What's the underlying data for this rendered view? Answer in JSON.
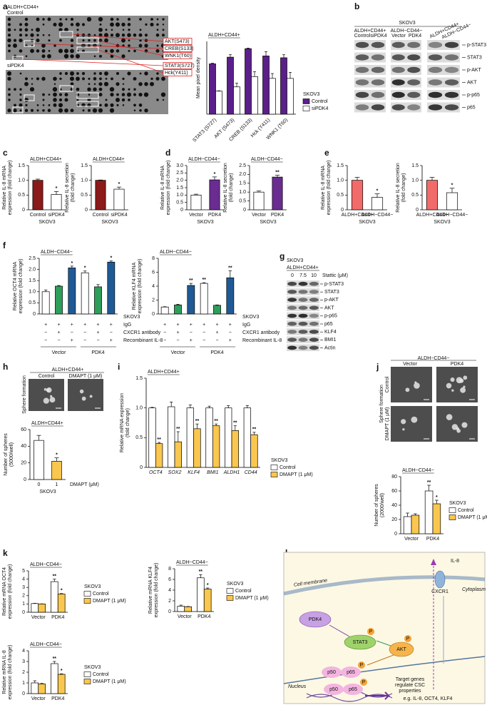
{
  "figure": {
    "panel_labels": [
      "a",
      "b",
      "c",
      "d",
      "e",
      "f",
      "g",
      "h",
      "i",
      "j",
      "k",
      "l"
    ],
    "a": {
      "header": "ALDH+CD44+",
      "arrays": [
        "Control",
        "siPDK4"
      ],
      "spots": [
        "AKT(S473)",
        "CREB(S133)",
        "WNK1(T60)",
        "STAT3(S727)",
        "Hck(Y411)"
      ]
    },
    "b": {
      "cell": "SKOV3",
      "groups": [
        "ALDH+CD44+",
        "ALDH−CD44−",
        "ALDH+CD44+",
        "ALDH−CD44−"
      ],
      "lanes": [
        "Control",
        "siPDK4",
        "Vector",
        "PDK4"
      ],
      "proteins": [
        "p-STAT3",
        "STAT3",
        "p-AKT",
        "AKT",
        "p-p65",
        "p65"
      ]
    },
    "f": {
      "cell": "SKOV3",
      "rows": [
        {
          "label": "IgG",
          "signs": [
            "+",
            "+",
            "+",
            "+",
            "+",
            "+"
          ]
        },
        {
          "label": "CXCR1 antibody",
          "signs": [
            "−",
            "+",
            "−",
            "−",
            "+",
            "−"
          ]
        },
        {
          "label": "Recombinant IL-8",
          "signs": [
            "−",
            "−",
            "+",
            "−",
            "−",
            "+"
          ]
        }
      ],
      "groups": [
        "Vector",
        "PDK4"
      ]
    },
    "g": {
      "cell": "SKOV3",
      "group": "ALDH+CD44+",
      "doses": [
        0,
        7.5,
        10
      ],
      "dose_label": "Stattic (μM)",
      "proteins": [
        "p-STAT3",
        "STAT3",
        "p-AKT",
        "AKT",
        "p-p65",
        "p65",
        "KLF4",
        "BMI1",
        "Actin"
      ]
    },
    "h": {
      "header": "ALDH+CD44+",
      "conditions": [
        "Control",
        "DMAPT (1 μM)"
      ],
      "row_label": "Sphere formation"
    },
    "j": {
      "header": "ALDH−CD44−",
      "columns": [
        "Vector",
        "PDK4"
      ],
      "rows": [
        "Control",
        "DMAPT (1 μM)"
      ],
      "row_label": "Sphere formation"
    },
    "l": {
      "il8": "IL-8",
      "cxcr1": "CXCR1",
      "membrane": "Cell membrane",
      "cytoplasm": "Cytoplasm",
      "nucleus": "Nucleus",
      "pdk4": "PDK4",
      "stat3": "STAT3",
      "akt": "AKT",
      "p50": "p50",
      "p65": "p65",
      "phospho": "P",
      "target": [
        "Target genes",
        "regulate CSC",
        "properties"
      ],
      "examples": "e.g. IL-8, OCT4, KLF4"
    }
  },
  "chart_data": [
    {
      "type": "bar",
      "title": "ALDH+CD44+",
      "y_label": [
        "Mean pixel density"
      ],
      "categories": [
        "STAT3 (S727)",
        "AKT (S473)",
        "CREB (S133)",
        "Hck (Y411)",
        "WNK1 (T60)"
      ],
      "series": [
        {
          "name": "Control",
          "color": "#5b1f8a",
          "values": [
            8.3,
            9.4,
            10.8,
            9.6,
            9.3
          ],
          "errors": [
            0.1,
            0.4,
            0.1,
            0.7,
            0.5
          ]
        },
        {
          "name": "siPDK4",
          "color": "#ffffff",
          "values": [
            3.8,
            4.5,
            6.2,
            5.9,
            5.9
          ],
          "errors": [
            0.05,
            0.6,
            0.8,
            0.8,
            1.0
          ]
        }
      ],
      "ylim": [
        0,
        12
      ],
      "legend": "right",
      "legend_title": "SKOV3"
    },
    {
      "type": "bar",
      "title": "ALDH+CD44+",
      "y_label": [
        "Relative IL-8 mRNA",
        "expression (fold change)"
      ],
      "categories": [
        "Control",
        "siPDK4"
      ],
      "series": [
        {
          "colors": [
            "#8b1a1a",
            "#ffffff"
          ],
          "values": [
            1.0,
            0.52
          ],
          "errors": [
            0.04,
            0.1
          ],
          "annotations": [
            null,
            "*"
          ]
        }
      ],
      "ylim": [
        0,
        1.5
      ],
      "yticks": [
        0,
        0.5,
        {
          "value": 1,
          "label": "1.0"
        },
        1.5
      ],
      "x_label": "SKOV3"
    },
    {
      "type": "bar",
      "title": "ALDH+CD44+",
      "y_label": [
        "Relative IL-8 secretion",
        "(fold change)"
      ],
      "categories": [
        "Control",
        "siPDK4"
      ],
      "series": [
        {
          "colors": [
            "#8b1a1a",
            "#ffffff"
          ],
          "values": [
            1.0,
            0.7
          ],
          "errors": [
            0.01,
            0.07
          ],
          "annotations": [
            null,
            "*"
          ]
        }
      ],
      "ylim": [
        0,
        1.5
      ],
      "yticks": [
        0,
        0.5,
        {
          "value": 1,
          "label": "1.0"
        },
        1.5
      ],
      "x_label": "SKOV3"
    },
    {
      "type": "bar",
      "title": "ALDH−CD44−",
      "y_label": [
        "Relative IL-8 mRNA",
        "expression (fold change)"
      ],
      "categories": [
        "Vector",
        "PDK4"
      ],
      "series": [
        {
          "colors": [
            "#ffffff",
            "#6a2c91"
          ],
          "values": [
            1.0,
            2.03
          ],
          "errors": [
            0.06,
            0.2
          ],
          "annotations": [
            null,
            "*"
          ]
        }
      ],
      "ylim": [
        0,
        3
      ],
      "yticks": [
        0,
        0.5,
        {
          "value": 1,
          "label": "1.0"
        },
        1.5,
        {
          "value": 2,
          "label": "2.0"
        },
        2.5,
        {
          "value": 3,
          "label": "3.0"
        }
      ],
      "x_label": "SKOV3"
    },
    {
      "type": "bar",
      "title": "ALDH−CD44−",
      "y_label": [
        "Relative IL-8 secretion",
        "(fold change)"
      ],
      "categories": [
        "Vector",
        "PDK4"
      ],
      "series": [
        {
          "colors": [
            "#ffffff",
            "#6a2c91"
          ],
          "values": [
            1.0,
            1.85
          ],
          "errors": [
            0.06,
            0.1
          ],
          "annotations": [
            null,
            "**"
          ]
        }
      ],
      "ylim": [
        0,
        2.5
      ],
      "yticks": [
        0,
        0.5,
        {
          "value": 1,
          "label": "1.0"
        },
        1.5,
        {
          "value": 2,
          "label": "2.0"
        },
        2.5
      ],
      "x_label": "SKOV3"
    },
    {
      "type": "bar",
      "y_label": [
        "Relative IL-8 mRNA",
        "expression (fold change)"
      ],
      "categories": [
        "ALDH+CD44+",
        "ALDH−CD44−"
      ],
      "series": [
        {
          "colors": [
            "#f26b6b",
            "#ffffff"
          ],
          "values": [
            1.0,
            0.42
          ],
          "errors": [
            0.1,
            0.12
          ],
          "annotations": [
            null,
            "*"
          ]
        }
      ],
      "ylim": [
        0,
        1.5
      ],
      "yticks": [
        0,
        0.5,
        {
          "value": 1,
          "label": "1.0"
        },
        1.5
      ],
      "x_label": "SKOV3"
    },
    {
      "type": "bar",
      "y_label": [
        "Relative IL-8 secretion",
        "(fold change)"
      ],
      "categories": [
        "ALDH+CD44+",
        "ALDH−CD44−"
      ],
      "series": [
        {
          "colors": [
            "#f26b6b",
            "#ffffff"
          ],
          "values": [
            1.0,
            0.58
          ],
          "errors": [
            0.1,
            0.15
          ],
          "annotations": [
            null,
            "*"
          ]
        }
      ],
      "ylim": [
        0,
        1.5
      ],
      "yticks": [
        0,
        0.5,
        {
          "value": 1,
          "label": "1.0"
        },
        1.5
      ],
      "x_label": "SKOV3"
    },
    {
      "type": "bar",
      "title": "ALDH−CD44−",
      "y_label": [
        "Relative OCT4 mRNA",
        "expression (fold change)"
      ],
      "categories": [
        null,
        null,
        null,
        null,
        null,
        null
      ],
      "series": [
        {
          "colors": [
            "#ffffff",
            "#2e9e5b",
            "#1f5a96",
            "#ffffff",
            "#2e9e5b",
            "#1f5a96"
          ],
          "values": [
            1.0,
            1.25,
            2.07,
            1.85,
            1.22,
            2.33
          ],
          "errors": [
            0.08,
            0.03,
            0.08,
            0.08,
            0.1,
            0.05
          ],
          "annotations": [
            null,
            null,
            "*",
            "*",
            null,
            "*"
          ]
        }
      ],
      "ylim": [
        0,
        2.5
      ],
      "yticks": [
        0,
        0.5,
        {
          "value": 1,
          "label": "1.0"
        },
        1.5,
        {
          "value": 2,
          "label": "2.0"
        },
        2.5
      ]
    },
    {
      "type": "bar",
      "title": "ALDH−CD44−",
      "y_label": [
        "Relative KLF4 mRNA",
        "expression (fold change)"
      ],
      "categories": [
        null,
        null,
        null,
        null,
        null,
        null
      ],
      "series": [
        {
          "colors": [
            "#ffffff",
            "#2e9e5b",
            "#1f5a96",
            "#ffffff",
            "#2e9e5b",
            "#1f5a96"
          ],
          "values": [
            1.0,
            1.3,
            4.1,
            4.4,
            1.25,
            5.2
          ],
          "errors": [
            0.05,
            0.1,
            0.3,
            0.1,
            0.05,
            1.0
          ],
          "annotations": [
            null,
            null,
            "**",
            "**",
            null,
            "**"
          ]
        }
      ],
      "ylim": [
        0,
        8
      ],
      "yticks": [
        0,
        2,
        4,
        6,
        8
      ]
    },
    {
      "type": "bar",
      "title": "ALDH+CD44+",
      "y_label": [
        "Number of spheres",
        "(5000/well)"
      ],
      "categories": [
        "0",
        "1"
      ],
      "series": [
        {
          "colors": [
            "#ffffff",
            "#f9c74f"
          ],
          "values": [
            47,
            22
          ],
          "errors": [
            6,
            4
          ],
          "annotations": [
            null,
            "*"
          ]
        }
      ],
      "ylim": [
        0,
        60
      ],
      "yticks": [
        0,
        20,
        40,
        60
      ],
      "x_label": "SKOV3",
      "x_caption": "DMAPT (μM)"
    },
    {
      "type": "bar",
      "title": "ALDH+CD44+",
      "y_label": [
        "Relative mRNA expression",
        "(fold change)"
      ],
      "categories": [
        "OCT4",
        "SOX2",
        "KLF4",
        "BMI1",
        "ALDH1",
        "CD44"
      ],
      "italic_categories": true,
      "series": [
        {
          "name": "Control",
          "color": "#ffffff",
          "values": [
            1.0,
            1.02,
            1.0,
            1.0,
            1.0,
            1.0
          ],
          "errors": [
            0.01,
            0.08,
            0.05,
            0.03,
            0.04,
            0.04
          ]
        },
        {
          "name": "DMAPT (1 μM)",
          "color": "#f9c74f",
          "values": [
            0.4,
            0.43,
            0.65,
            0.7,
            0.62,
            0.55
          ],
          "errors": [
            0.02,
            0.17,
            0.08,
            0.03,
            0.08,
            0.04
          ],
          "annotations": [
            "**",
            "**",
            "**",
            "**",
            "**",
            "**"
          ]
        }
      ],
      "ylim": [
        0,
        1.5
      ],
      "yticks": [
        0,
        0.5,
        {
          "value": 1,
          "label": "1.0"
        },
        1.5
      ],
      "legend": "right",
      "legend_title": "SKOV3"
    },
    {
      "type": "bar",
      "title": "ALDH−CD44−",
      "y_label": [
        "Number of spheres",
        "(2000/well)"
      ],
      "categories": [
        "Vector",
        "PDK4"
      ],
      "series": [
        {
          "name": "Control",
          "color": "#ffffff",
          "values": [
            24,
            60
          ],
          "errors": [
            5,
            8
          ],
          "annotations": [
            null,
            "**"
          ]
        },
        {
          "name": "DMAPT (1 μM)",
          "color": "#f9c74f",
          "values": [
            26,
            42
          ],
          "errors": [
            2,
            5
          ],
          "annotations": [
            null,
            "*"
          ]
        }
      ],
      "ylim": [
        0,
        80
      ],
      "yticks": [
        0,
        20,
        40,
        60,
        80
      ],
      "legend": "right",
      "legend_title": "SKOV3"
    },
    {
      "type": "bar",
      "title": "ALDH−CD44−",
      "y_label": [
        "Relative mRNA OCT4",
        "expression (fold change)"
      ],
      "categories": [
        "Vector",
        "PDK4"
      ],
      "series": [
        {
          "name": "Control",
          "color": "#ffffff",
          "values": [
            1.05,
            3.7
          ],
          "errors": [
            0.03,
            0.3
          ],
          "annotations": [
            null,
            "**"
          ]
        },
        {
          "name": "DMAPT (1 μM)",
          "color": "#f9c74f",
          "values": [
            1.0,
            2.2
          ],
          "errors": [
            0.02,
            0.06
          ],
          "annotations": [
            null,
            "*"
          ]
        }
      ],
      "ylim": [
        0,
        5
      ],
      "yticks": [
        0,
        1,
        2,
        3,
        4,
        5
      ],
      "legend": "right",
      "legend_title": "SKOV3"
    },
    {
      "type": "bar",
      "title": "ALDH−CD44−",
      "y_label": [
        "Relative mRNA KLF4",
        "expression (fold change)"
      ],
      "categories": [
        "Vector",
        "PDK4"
      ],
      "series": [
        {
          "name": "Control",
          "color": "#ffffff",
          "values": [
            1.0,
            6.3
          ],
          "errors": [
            0.2,
            0.6
          ],
          "annotations": [
            null,
            "**"
          ]
        },
        {
          "name": "DMAPT (1 μM)",
          "color": "#f9c74f",
          "values": [
            0.9,
            4.2
          ],
          "errors": [
            0.05,
            0.2
          ],
          "annotations": [
            null,
            "*"
          ]
        }
      ],
      "ylim": [
        0,
        8
      ],
      "yticks": [
        0,
        2,
        4,
        6,
        8
      ],
      "legend": "right",
      "legend_title": "SKOV3"
    },
    {
      "type": "bar",
      "title": "ALDH−CD44−",
      "y_label": [
        "Relative mRNA IL-8",
        "expression (fold change)"
      ],
      "categories": [
        "Vector",
        "PDK4"
      ],
      "series": [
        {
          "name": "Control",
          "color": "#ffffff",
          "values": [
            1.0,
            2.8
          ],
          "errors": [
            0.2,
            0.2
          ],
          "annotations": [
            null,
            "**"
          ]
        },
        {
          "name": "DMAPT (1 μM)",
          "color": "#f9c74f",
          "values": [
            0.9,
            1.8
          ],
          "errors": [
            0.05,
            0.05
          ],
          "annotations": [
            null,
            "*"
          ]
        }
      ],
      "ylim": [
        0,
        4
      ],
      "yticks": [
        0,
        1,
        2,
        3,
        4
      ],
      "legend": "right",
      "legend_title": "SKOV3"
    }
  ]
}
